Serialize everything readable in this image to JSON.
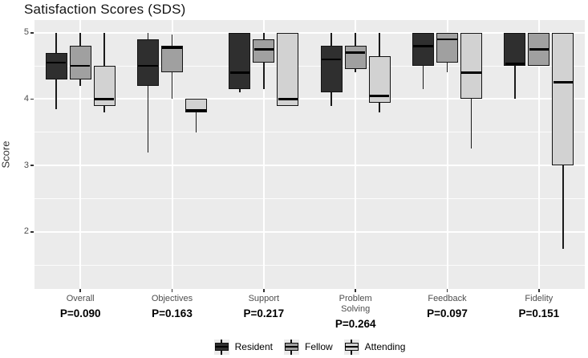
{
  "chart_data": {
    "type": "boxplot",
    "title": "Satisfaction Scores (SDS)",
    "xlabel": "",
    "ylabel": "Score",
    "yticks": [
      5,
      4,
      3,
      2
    ],
    "yticks_minor": [
      4.5,
      3.5,
      2.5,
      1.5
    ],
    "ylim": [
      1.14,
      5.19
    ],
    "grid": true,
    "panel_background": "#ebebeb",
    "gridline_color": "#ffffff",
    "series_names": [
      "Resident",
      "Fellow",
      "Attending"
    ],
    "series_colors": {
      "Resident": "#2f2f2f",
      "Fellow": "#a0a0a0",
      "Attending": "#d2d2d2"
    },
    "groups": [
      {
        "label": "Overall",
        "p_value": "P=0.090",
        "boxes": [
          {
            "series": "Resident",
            "whisker_low": 3.85,
            "q1": 4.3,
            "median": 4.55,
            "q3": 4.7,
            "whisker_high": 5.0
          },
          {
            "series": "Fellow",
            "whisker_low": 4.2,
            "q1": 4.3,
            "median": 4.5,
            "q3": 4.8,
            "whisker_high": 5.0
          },
          {
            "series": "Attending",
            "whisker_low": 3.8,
            "q1": 3.9,
            "median": 4.0,
            "q3": 4.5,
            "whisker_high": 5.0
          }
        ]
      },
      {
        "label": "Objectives",
        "p_value": "P=0.163",
        "boxes": [
          {
            "series": "Resident",
            "whisker_low": 3.2,
            "q1": 4.2,
            "median": 4.5,
            "q3": 4.9,
            "whisker_high": 5.0
          },
          {
            "series": "Fellow",
            "whisker_low": 4.0,
            "q1": 4.4,
            "median": 4.77,
            "q3": 4.8,
            "whisker_high": 4.97
          },
          {
            "series": "Attending",
            "whisker_low": 3.5,
            "q1": 3.8,
            "median": 3.83,
            "q3": 4.0,
            "whisker_high": 4.0
          }
        ]
      },
      {
        "label": "Support",
        "p_value": "P=0.217",
        "boxes": [
          {
            "series": "Resident",
            "whisker_low": 4.1,
            "q1": 4.15,
            "median": 4.4,
            "q3": 5.0,
            "whisker_high": 5.0
          },
          {
            "series": "Fellow",
            "whisker_low": 4.15,
            "q1": 4.55,
            "median": 4.75,
            "q3": 4.9,
            "whisker_high": 5.0
          },
          {
            "series": "Attending",
            "whisker_low": 3.9,
            "q1": 3.9,
            "median": 4.0,
            "q3": 5.0,
            "whisker_high": 5.0
          }
        ]
      },
      {
        "label": "Problem Solving",
        "p_value": "P=0.264",
        "boxes": [
          {
            "series": "Resident",
            "whisker_low": 3.9,
            "q1": 4.1,
            "median": 4.6,
            "q3": 4.8,
            "whisker_high": 5.0
          },
          {
            "series": "Fellow",
            "whisker_low": 4.4,
            "q1": 4.45,
            "median": 4.7,
            "q3": 4.8,
            "whisker_high": 5.0
          },
          {
            "series": "Attending",
            "whisker_low": 3.8,
            "q1": 3.95,
            "median": 4.05,
            "q3": 4.65,
            "whisker_high": 5.0
          }
        ]
      },
      {
        "label": "Feedback",
        "p_value": "P=0.097",
        "boxes": [
          {
            "series": "Resident",
            "whisker_low": 4.15,
            "q1": 4.5,
            "median": 4.8,
            "q3": 5.0,
            "whisker_high": 5.0
          },
          {
            "series": "Fellow",
            "whisker_low": 4.4,
            "q1": 4.55,
            "median": 4.9,
            "q3": 5.0,
            "whisker_high": 5.0
          },
          {
            "series": "Attending",
            "whisker_low": 3.25,
            "q1": 4.0,
            "median": 4.4,
            "q3": 5.0,
            "whisker_high": 5.0
          }
        ]
      },
      {
        "label": "Fidelity",
        "p_value": "P=0.151",
        "boxes": [
          {
            "series": "Resident",
            "whisker_low": 4.0,
            "q1": 4.5,
            "median": 4.5,
            "q3": 5.0,
            "whisker_high": 5.0
          },
          {
            "series": "Fellow",
            "whisker_low": 4.5,
            "q1": 4.5,
            "median": 4.75,
            "q3": 5.0,
            "whisker_high": 5.0
          },
          {
            "series": "Attending",
            "whisker_low": 1.75,
            "q1": 3.0,
            "median": 4.25,
            "q3": 5.0,
            "whisker_high": 5.0
          }
        ]
      }
    ],
    "legend": {
      "position": "bottom",
      "items": [
        "Resident",
        "Fellow",
        "Attending"
      ]
    }
  }
}
